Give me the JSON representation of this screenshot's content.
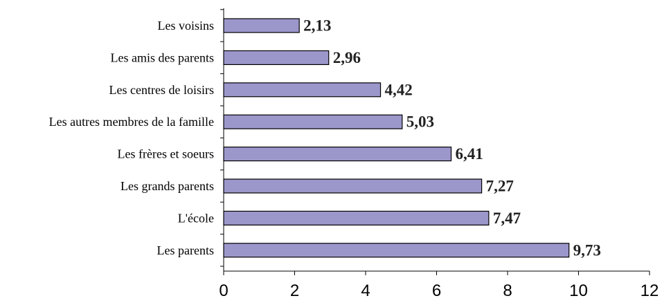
{
  "chart_data": {
    "type": "bar",
    "orientation": "horizontal",
    "categories": [
      "Les voisins",
      "Les amis des parents",
      "Les centres de loisirs",
      "Les autres membres de la famille",
      "Les frères et soeurs",
      "Les grands parents",
      "L'école",
      "Les parents"
    ],
    "values": [
      2.13,
      2.96,
      4.42,
      5.03,
      6.41,
      7.27,
      7.47,
      9.73
    ],
    "value_labels": [
      "2,13",
      "2,96",
      "4,42",
      "5,03",
      "6,41",
      "7,27",
      "7,47",
      "9,73"
    ],
    "xlim": [
      0,
      12
    ],
    "x_ticks": [
      0,
      2,
      4,
      6,
      8,
      10,
      12
    ],
    "x_tick_labels": [
      "0",
      "2",
      "4",
      "6",
      "8",
      "10",
      "12"
    ],
    "title": "",
    "xlabel": "",
    "ylabel": "",
    "grid": false,
    "legend": "none",
    "colors": {
      "bar_fill": "#9b97cb",
      "bar_stroke": "#000000",
      "axis": "#000000"
    }
  }
}
